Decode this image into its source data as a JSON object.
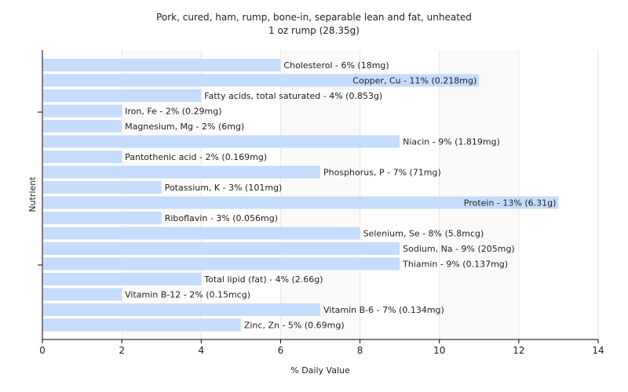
{
  "chart_data": {
    "type": "bar",
    "orientation": "horizontal",
    "title": "Pork, cured, ham, rump, bone-in, separable lean and fat, unheated",
    "subtitle": "1 oz rump (28.35g)",
    "xlabel": "% Daily Value",
    "ylabel": "Nutrient",
    "xlim": [
      0,
      14
    ],
    "xticks": [
      0,
      2,
      4,
      6,
      8,
      10,
      12,
      14
    ],
    "grid": true,
    "legend": "none",
    "bar_color": "#c6dcfd",
    "categories": [
      "Cholesterol",
      "Copper, Cu",
      "Fatty acids, total saturated",
      "Iron, Fe",
      "Magnesium, Mg",
      "Niacin",
      "Pantothenic acid",
      "Phosphorus, P",
      "Potassium, K",
      "Protein",
      "Riboflavin",
      "Selenium, Se",
      "Sodium, Na",
      "Thiamin",
      "Total lipid (fat)",
      "Vitamin B-12",
      "Vitamin B-6",
      "Zinc, Zn"
    ],
    "values": [
      6,
      11,
      4,
      2,
      2,
      9,
      2,
      7,
      3,
      13,
      3,
      8,
      9,
      9,
      4,
      2,
      7,
      5
    ],
    "labels": [
      "Cholesterol - 6% (18mg)",
      "Copper, Cu - 11% (0.218mg)",
      "Fatty acids, total saturated - 4% (0.853g)",
      "Iron, Fe - 2% (0.29mg)",
      "Magnesium, Mg - 2% (6mg)",
      "Niacin - 9% (1.819mg)",
      "Pantothenic acid - 2% (0.169mg)",
      "Phosphorus, P - 7% (71mg)",
      "Potassium, K - 3% (101mg)",
      "Protein - 13% (6.31g)",
      "Riboflavin - 3% (0.056mg)",
      "Selenium, Se - 8% (5.8mcg)",
      "Sodium, Na - 9% (205mg)",
      "Thiamin - 9% (0.137mg)",
      "Total lipid (fat) - 4% (2.66g)",
      "Vitamin B-12 - 2% (0.15mcg)",
      "Vitamin B-6 - 7% (0.134mg)",
      "Zinc, Zn - 5% (0.69mg)"
    ]
  }
}
